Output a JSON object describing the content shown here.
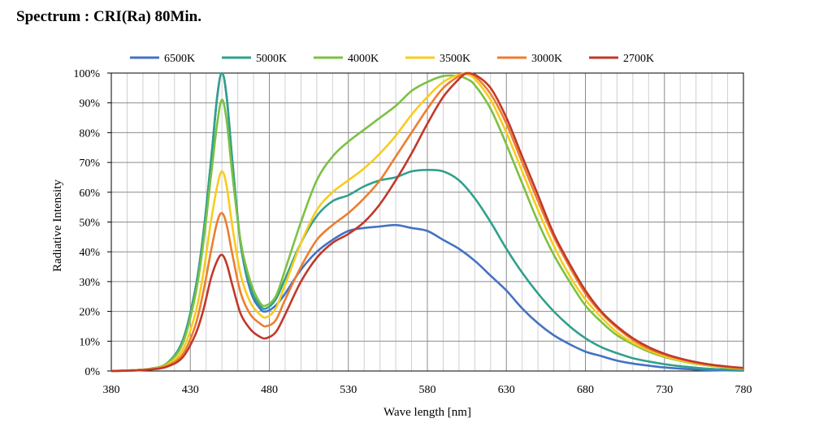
{
  "title": "Spectrum : CRI(Ra) 80Min.",
  "chart_data": {
    "type": "line",
    "title": "Spectrum : CRI(Ra) 80Min.",
    "xlabel": "Wave length [nm]",
    "ylabel": "Radiative Intensity",
    "xlim": [
      380,
      780
    ],
    "ylim": [
      0,
      100
    ],
    "x_ticks": [
      380,
      430,
      480,
      530,
      580,
      630,
      680,
      730,
      780
    ],
    "y_ticks": [
      "0%",
      "10%",
      "20%",
      "30%",
      "40%",
      "50%",
      "60%",
      "70%",
      "80%",
      "90%",
      "100%"
    ],
    "grid": true,
    "legend_position": "top",
    "series": [
      {
        "name": "6500K",
        "color": "#4472c4",
        "points": [
          [
            380,
            0
          ],
          [
            395,
            0.3
          ],
          [
            405,
            0.8
          ],
          [
            415,
            2.5
          ],
          [
            425,
            10
          ],
          [
            433,
            27
          ],
          [
            438,
            45
          ],
          [
            443,
            70
          ],
          [
            447,
            92
          ],
          [
            450,
            100
          ],
          [
            453,
            92
          ],
          [
            457,
            68
          ],
          [
            462,
            42
          ],
          [
            468,
            27
          ],
          [
            474,
            21
          ],
          [
            478,
            20
          ],
          [
            484,
            22
          ],
          [
            490,
            26
          ],
          [
            500,
            34
          ],
          [
            510,
            40
          ],
          [
            520,
            44
          ],
          [
            530,
            47
          ],
          [
            540,
            48
          ],
          [
            550,
            48.5
          ],
          [
            560,
            49
          ],
          [
            570,
            48
          ],
          [
            580,
            47
          ],
          [
            590,
            44
          ],
          [
            600,
            41
          ],
          [
            610,
            37
          ],
          [
            620,
            32
          ],
          [
            630,
            27
          ],
          [
            640,
            21
          ],
          [
            650,
            16
          ],
          [
            660,
            12
          ],
          [
            670,
            9
          ],
          [
            680,
            6.5
          ],
          [
            690,
            5
          ],
          [
            700,
            3.5
          ],
          [
            710,
            2.5
          ],
          [
            720,
            1.8
          ],
          [
            730,
            1.2
          ],
          [
            740,
            0.8
          ],
          [
            750,
            0.5
          ],
          [
            760,
            0.3
          ],
          [
            780,
            0.1
          ]
        ]
      },
      {
        "name": "5000K",
        "color": "#31a08c",
        "points": [
          [
            380,
            0
          ],
          [
            395,
            0.3
          ],
          [
            405,
            0.8
          ],
          [
            415,
            2.5
          ],
          [
            425,
            10
          ],
          [
            433,
            27
          ],
          [
            438,
            45
          ],
          [
            443,
            70
          ],
          [
            447,
            92
          ],
          [
            450,
            100
          ],
          [
            453,
            92
          ],
          [
            457,
            68
          ],
          [
            462,
            42
          ],
          [
            468,
            28
          ],
          [
            474,
            22
          ],
          [
            478,
            21
          ],
          [
            484,
            24
          ],
          [
            490,
            31
          ],
          [
            500,
            43
          ],
          [
            510,
            52
          ],
          [
            520,
            57
          ],
          [
            530,
            59
          ],
          [
            540,
            62
          ],
          [
            550,
            64
          ],
          [
            560,
            65
          ],
          [
            570,
            67
          ],
          [
            580,
            67.5
          ],
          [
            590,
            67
          ],
          [
            600,
            64
          ],
          [
            610,
            58
          ],
          [
            620,
            50
          ],
          [
            630,
            41
          ],
          [
            640,
            33
          ],
          [
            650,
            26
          ],
          [
            660,
            20
          ],
          [
            670,
            15
          ],
          [
            680,
            11
          ],
          [
            690,
            8
          ],
          [
            700,
            6
          ],
          [
            710,
            4.3
          ],
          [
            720,
            3.2
          ],
          [
            730,
            2.3
          ],
          [
            740,
            1.6
          ],
          [
            750,
            1.1
          ],
          [
            760,
            0.7
          ],
          [
            780,
            0.3
          ]
        ]
      },
      {
        "name": "4000K",
        "color": "#7cc142",
        "points": [
          [
            380,
            0
          ],
          [
            395,
            0.3
          ],
          [
            405,
            0.8
          ],
          [
            415,
            2.5
          ],
          [
            425,
            9
          ],
          [
            433,
            25
          ],
          [
            438,
            42
          ],
          [
            443,
            65
          ],
          [
            447,
            83
          ],
          [
            450,
            91
          ],
          [
            453,
            84
          ],
          [
            457,
            64
          ],
          [
            462,
            43
          ],
          [
            468,
            30
          ],
          [
            474,
            23
          ],
          [
            478,
            22
          ],
          [
            484,
            25
          ],
          [
            490,
            34
          ],
          [
            500,
            50
          ],
          [
            510,
            64
          ],
          [
            520,
            72
          ],
          [
            530,
            77
          ],
          [
            540,
            81
          ],
          [
            550,
            85
          ],
          [
            560,
            89
          ],
          [
            570,
            94
          ],
          [
            580,
            97
          ],
          [
            590,
            99
          ],
          [
            600,
            99
          ],
          [
            605,
            98
          ],
          [
            610,
            96
          ],
          [
            620,
            88
          ],
          [
            630,
            76
          ],
          [
            640,
            63
          ],
          [
            650,
            50
          ],
          [
            660,
            39
          ],
          [
            670,
            30
          ],
          [
            680,
            22
          ],
          [
            690,
            16.5
          ],
          [
            700,
            12
          ],
          [
            710,
            9
          ],
          [
            720,
            6.5
          ],
          [
            730,
            4.7
          ],
          [
            740,
            3.4
          ],
          [
            750,
            2.4
          ],
          [
            760,
            1.7
          ],
          [
            770,
            1.1
          ],
          [
            780,
            0.7
          ]
        ]
      },
      {
        "name": "3500K",
        "color": "#f7cc1e",
        "points": [
          [
            380,
            0
          ],
          [
            395,
            0.3
          ],
          [
            405,
            0.7
          ],
          [
            415,
            2
          ],
          [
            425,
            7
          ],
          [
            433,
            19
          ],
          [
            438,
            32
          ],
          [
            443,
            50
          ],
          [
            447,
            62
          ],
          [
            450,
            67
          ],
          [
            453,
            62
          ],
          [
            457,
            47
          ],
          [
            462,
            32
          ],
          [
            468,
            23
          ],
          [
            474,
            19
          ],
          [
            478,
            18
          ],
          [
            484,
            21
          ],
          [
            490,
            29
          ],
          [
            500,
            43
          ],
          [
            510,
            54
          ],
          [
            520,
            60
          ],
          [
            530,
            64
          ],
          [
            540,
            68
          ],
          [
            550,
            73
          ],
          [
            560,
            79
          ],
          [
            570,
            86
          ],
          [
            580,
            92
          ],
          [
            590,
            97
          ],
          [
            600,
            99.5
          ],
          [
            605,
            99.5
          ],
          [
            610,
            98
          ],
          [
            620,
            91
          ],
          [
            630,
            80
          ],
          [
            640,
            67
          ],
          [
            650,
            54
          ],
          [
            660,
            42
          ],
          [
            670,
            32
          ],
          [
            680,
            24
          ],
          [
            690,
            18
          ],
          [
            700,
            13
          ],
          [
            710,
            9.5
          ],
          [
            720,
            7
          ],
          [
            730,
            5
          ],
          [
            740,
            3.6
          ],
          [
            750,
            2.6
          ],
          [
            760,
            1.8
          ],
          [
            770,
            1.2
          ],
          [
            780,
            0.8
          ]
        ]
      },
      {
        "name": "3000K",
        "color": "#ed7d31",
        "points": [
          [
            380,
            0
          ],
          [
            395,
            0.2
          ],
          [
            405,
            0.6
          ],
          [
            415,
            1.7
          ],
          [
            425,
            5.5
          ],
          [
            433,
            15
          ],
          [
            438,
            26
          ],
          [
            443,
            40
          ],
          [
            447,
            50
          ],
          [
            450,
            53
          ],
          [
            453,
            49
          ],
          [
            457,
            38
          ],
          [
            462,
            26
          ],
          [
            468,
            19
          ],
          [
            474,
            16
          ],
          [
            478,
            15
          ],
          [
            484,
            17
          ],
          [
            490,
            24
          ],
          [
            500,
            35
          ],
          [
            510,
            44
          ],
          [
            520,
            49
          ],
          [
            530,
            53
          ],
          [
            540,
            58
          ],
          [
            550,
            64
          ],
          [
            560,
            72
          ],
          [
            570,
            80
          ],
          [
            580,
            88
          ],
          [
            590,
            95
          ],
          [
            600,
            99
          ],
          [
            605,
            100
          ],
          [
            610,
            99
          ],
          [
            620,
            93
          ],
          [
            630,
            83
          ],
          [
            640,
            70
          ],
          [
            650,
            57
          ],
          [
            660,
            45
          ],
          [
            670,
            35
          ],
          [
            680,
            26
          ],
          [
            690,
            19.5
          ],
          [
            700,
            14.5
          ],
          [
            710,
            10.5
          ],
          [
            720,
            7.5
          ],
          [
            730,
            5.5
          ],
          [
            740,
            4
          ],
          [
            750,
            2.8
          ],
          [
            760,
            2
          ],
          [
            770,
            1.4
          ],
          [
            780,
            1
          ]
        ]
      },
      {
        "name": "2700K",
        "color": "#c0392b",
        "points": [
          [
            380,
            0
          ],
          [
            395,
            0.2
          ],
          [
            405,
            0.5
          ],
          [
            415,
            1.4
          ],
          [
            425,
            4.5
          ],
          [
            433,
            12
          ],
          [
            438,
            20
          ],
          [
            443,
            31
          ],
          [
            447,
            37
          ],
          [
            450,
            39
          ],
          [
            453,
            36
          ],
          [
            457,
            28
          ],
          [
            462,
            19
          ],
          [
            468,
            14
          ],
          [
            474,
            11.5
          ],
          [
            478,
            11
          ],
          [
            484,
            13
          ],
          [
            490,
            19
          ],
          [
            500,
            30
          ],
          [
            510,
            38
          ],
          [
            520,
            43
          ],
          [
            530,
            46
          ],
          [
            540,
            50
          ],
          [
            550,
            56
          ],
          [
            560,
            64
          ],
          [
            570,
            73
          ],
          [
            580,
            83
          ],
          [
            590,
            92
          ],
          [
            600,
            98
          ],
          [
            605,
            100
          ],
          [
            610,
            99.5
          ],
          [
            620,
            95
          ],
          [
            630,
            85
          ],
          [
            640,
            72
          ],
          [
            650,
            59
          ],
          [
            660,
            46
          ],
          [
            670,
            36
          ],
          [
            680,
            27
          ],
          [
            690,
            20
          ],
          [
            700,
            15
          ],
          [
            710,
            11
          ],
          [
            720,
            8
          ],
          [
            730,
            5.8
          ],
          [
            740,
            4.2
          ],
          [
            750,
            3
          ],
          [
            760,
            2.1
          ],
          [
            770,
            1.5
          ],
          [
            780,
            1
          ]
        ]
      }
    ]
  }
}
